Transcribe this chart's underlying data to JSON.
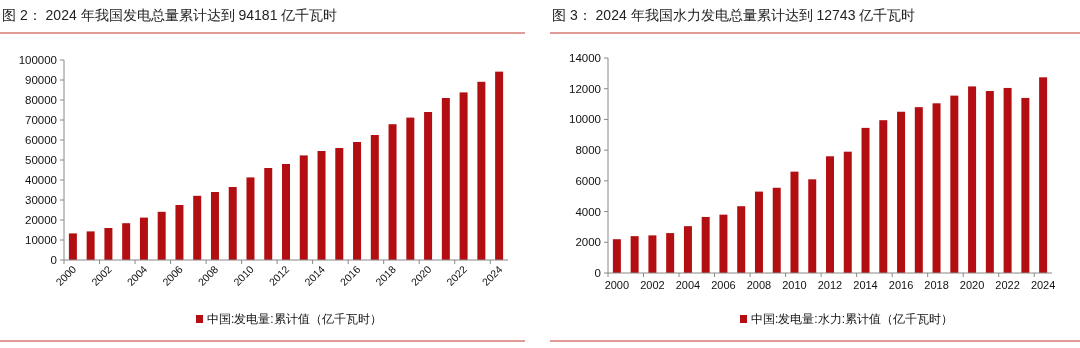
{
  "chart_data": [
    {
      "type": "bar",
      "title": "图 2： 2024 年我国发电总量累计达到 94181 亿千瓦时",
      "categories": [
        "2000",
        null,
        "2002",
        null,
        "2004",
        null,
        "2006",
        null,
        "2008",
        null,
        "2010",
        null,
        "2012",
        null,
        "2014",
        null,
        "2016",
        null,
        "2018",
        null,
        "2020",
        null,
        "2022",
        null,
        "2024"
      ],
      "series": [
        {
          "name": "中国:发电量:累计值（亿千瓦时）",
          "color": "#b30f12",
          "values": [
            13300,
            14300,
            16000,
            18400,
            21200,
            24100,
            27500,
            32100,
            34000,
            36500,
            41300,
            46000,
            48000,
            52300,
            54500,
            56000,
            59000,
            62500,
            67900,
            71200,
            74000,
            81000,
            83800,
            89100,
            94181
          ]
        }
      ],
      "ylim": [
        0,
        100000
      ],
      "yticks": [
        0,
        10000,
        20000,
        30000,
        40000,
        50000,
        60000,
        70000,
        80000,
        90000,
        100000
      ],
      "legend": "bottom"
    },
    {
      "type": "bar",
      "title": "图 3： 2024 年我国水力发电总量累计达到 12743 亿千瓦时",
      "categories": [
        "2000",
        null,
        "2002",
        null,
        "2004",
        null,
        "2006",
        null,
        "2008",
        null,
        "2010",
        null,
        "2012",
        null,
        "2014",
        null,
        "2016",
        null,
        "2018",
        null,
        "2020",
        null,
        "2022",
        null,
        "2024"
      ],
      "series": [
        {
          "name": "中国:发电量:水力:累计值（亿千瓦时）",
          "color": "#b30f12",
          "values": [
            2200,
            2400,
            2450,
            2600,
            3050,
            3650,
            3800,
            4350,
            5300,
            5550,
            6600,
            6100,
            7600,
            7900,
            9450,
            9950,
            10500,
            10800,
            11050,
            11550,
            12150,
            11850,
            12050,
            11400,
            12743
          ]
        }
      ],
      "ylim": [
        0,
        14000
      ],
      "yticks": [
        0,
        2000,
        4000,
        6000,
        8000,
        10000,
        12000,
        14000
      ],
      "legend": "bottom"
    }
  ]
}
